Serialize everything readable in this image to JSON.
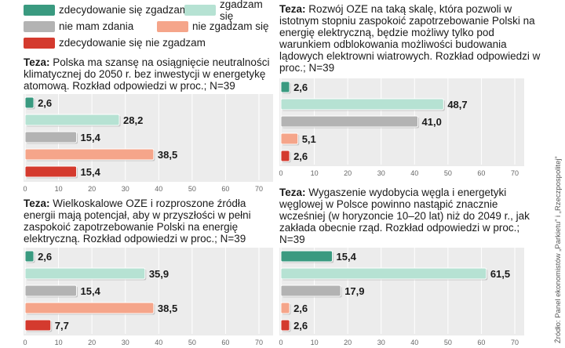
{
  "legend": [
    {
      "label": "zdecydowanie się zgadzam",
      "color": "#3a9a80"
    },
    {
      "label": "zgadzam się",
      "color": "#b6e2d3"
    },
    {
      "label": "nie mam zdania",
      "color": "#b3b3b3"
    },
    {
      "label": "nie zgadzam się",
      "color": "#f5a58a"
    },
    {
      "label": "zdecydowanie się nie zgadzam",
      "color": "#d43a2e"
    }
  ],
  "thesis_prefix": "Teza:",
  "source": "Źródło: Panel ekonomistów „Parkietu” i „Rzeczpospolitej”",
  "chart_data": [
    {
      "type": "bar",
      "thesis": "Polska ma szansę na osiągnięcie neutralności klimatycznej do 2050 r. bez inwestycji w energetykę atomową. Rozkład odpowiedzi w proc.; N=39",
      "categories": [
        "zdecydowanie się zgadzam",
        "zgadzam się",
        "nie mam zdania",
        "nie zgadzam się",
        "zdecydowanie się nie zgadzam"
      ],
      "values": [
        2.6,
        28.2,
        15.4,
        38.5,
        15.4
      ],
      "labels": [
        "2,6",
        "28,2",
        "15,4",
        "38,5",
        "15,4"
      ],
      "xlim": [
        0,
        70
      ],
      "ticks": [
        "0",
        "10",
        "20",
        "30",
        "40",
        "50",
        "60",
        "70"
      ]
    },
    {
      "type": "bar",
      "thesis": "Rozwój OZE na taką skalę, która pozwoli w istotnym stopniu zaspokoić zapotrzebowanie Polski na energię elektryczną, będzie możliwy tylko pod warunkiem odblokowania możliwości budowania lądowych elektrowni wiatrowych. Rozkład odpowiedzi w proc.; N=39",
      "categories": [
        "zdecydowanie się zgadzam",
        "zgadzam się",
        "nie mam zdania",
        "nie zgadzam się",
        "zdecydowanie się nie zgadzam"
      ],
      "values": [
        2.6,
        48.7,
        41.0,
        5.1,
        2.6
      ],
      "labels": [
        "2,6",
        "48,7",
        "41,0",
        "5,1",
        "2,6"
      ],
      "xlim": [
        0,
        70
      ],
      "ticks": [
        "0",
        "10",
        "20",
        "30",
        "40",
        "50",
        "60",
        "70"
      ]
    },
    {
      "type": "bar",
      "thesis": "Wielkoskalowe OZE i rozproszone źródła energii mają potencjał, aby w przyszłości w pełni zaspokoić zapotrzebowanie Polski na energię elektryczną. Rozkład odpowiedzi w proc.; N=39",
      "categories": [
        "zdecydowanie się zgadzam",
        "zgadzam się",
        "nie mam zdania",
        "nie zgadzam się",
        "zdecydowanie się nie zgadzam"
      ],
      "values": [
        2.6,
        35.9,
        15.4,
        38.5,
        7.7
      ],
      "labels": [
        "2,6",
        "35,9",
        "15,4",
        "38,5",
        "7,7"
      ],
      "xlim": [
        0,
        70
      ],
      "ticks": [
        "0",
        "10",
        "20",
        "30",
        "40",
        "50",
        "60",
        "70"
      ]
    },
    {
      "type": "bar",
      "thesis": "Wygaszenie wydobycia węgla i energetyki węglowej w Polsce powinno nastąpić znacznie wcześniej (w horyzoncie 10–20 lat) niż do 2049 r., jak zakłada obecnie rząd. Rozkład odpowiedzi w proc.; N=39",
      "categories": [
        "zdecydowanie się zgadzam",
        "zgadzam się",
        "nie mam zdania",
        "nie zgadzam się",
        "zdecydowanie się nie zgadzam"
      ],
      "values": [
        15.4,
        61.5,
        17.9,
        2.6,
        2.6
      ],
      "labels": [
        "15,4",
        "61,5",
        "17,9",
        "2,6",
        "2,6"
      ],
      "xlim": [
        0,
        70
      ],
      "ticks": [
        "0",
        "10",
        "20",
        "30",
        "40",
        "50",
        "60",
        "70"
      ]
    }
  ]
}
